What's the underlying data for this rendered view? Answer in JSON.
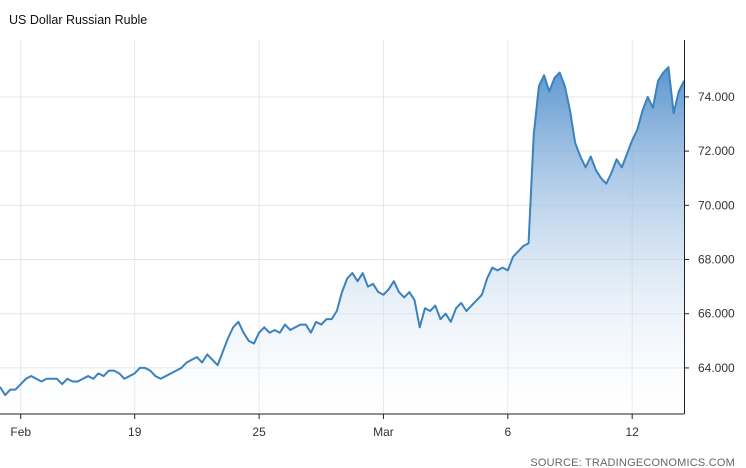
{
  "chart_data": {
    "type": "area",
    "title": "US Dollar Russian Ruble",
    "source": "SOURCE: TRADINGECONOMICS.COM",
    "x_tick_labels": [
      "Feb",
      "19",
      "25",
      "Mar",
      "6",
      "12"
    ],
    "x_tick_index": [
      4,
      26,
      50,
      74,
      98,
      122
    ],
    "y_ticks": [
      "64.000",
      "66.000",
      "68.000",
      "70.000",
      "72.000",
      "74.000"
    ],
    "ylim": [
      62.3,
      76.1
    ],
    "grid": true,
    "colors": {
      "line": "#3b82be",
      "fill_top": "#5d96cf",
      "fill_bottom": "#ffffff",
      "grid": "#e6e6e6",
      "axis": "#222222"
    },
    "series": [
      {
        "values": [
          63.3,
          63.0,
          63.2,
          63.2,
          63.4,
          63.6,
          63.7,
          63.6,
          63.5,
          63.6,
          63.6,
          63.6,
          63.4,
          63.6,
          63.5,
          63.5,
          63.6,
          63.7,
          63.6,
          63.8,
          63.7,
          63.9,
          63.9,
          63.8,
          63.6,
          63.7,
          63.8,
          64.0,
          64.0,
          63.9,
          63.7,
          63.6,
          63.7,
          63.8,
          63.9,
          64.0,
          64.2,
          64.3,
          64.4,
          64.2,
          64.5,
          64.3,
          64.1,
          64.6,
          65.1,
          65.5,
          65.7,
          65.3,
          65.0,
          64.9,
          65.3,
          65.5,
          65.3,
          65.4,
          65.3,
          65.6,
          65.4,
          65.5,
          65.6,
          65.6,
          65.3,
          65.7,
          65.6,
          65.8,
          65.8,
          66.1,
          66.8,
          67.3,
          67.5,
          67.2,
          67.5,
          67.0,
          67.1,
          66.8,
          66.7,
          66.9,
          67.2,
          66.8,
          66.6,
          66.8,
          66.5,
          65.5,
          66.2,
          66.1,
          66.3,
          65.8,
          66.0,
          65.7,
          66.2,
          66.4,
          66.1,
          66.3,
          66.5,
          66.7,
          67.3,
          67.7,
          67.6,
          67.7,
          67.6,
          68.1,
          68.3,
          68.5,
          68.6,
          72.6,
          74.4,
          74.8,
          74.2,
          74.7,
          74.9,
          74.4,
          73.5,
          72.3,
          71.8,
          71.4,
          71.8,
          71.3,
          71.0,
          70.8,
          71.2,
          71.7,
          71.4,
          71.9,
          72.4,
          72.8,
          73.5,
          74.0,
          73.6,
          74.6,
          74.9,
          75.1,
          73.4,
          74.2,
          74.6
        ]
      }
    ]
  }
}
